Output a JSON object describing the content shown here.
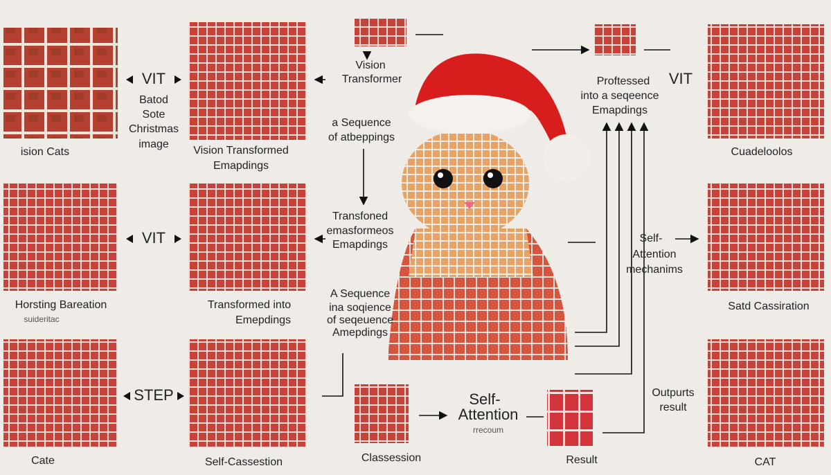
{
  "left": {
    "top_caption": "ision Cats",
    "side_note": [
      "Batod",
      "Sote",
      "Christmas",
      "image"
    ],
    "mid_caption": [
      "Horsting Bareation",
      "suideritac"
    ],
    "bottom_caption": "Cate"
  },
  "arrows_left": [
    "VIT",
    "VIT",
    "STEP"
  ],
  "middle": {
    "top_caption": [
      "Vision Transformed",
      "Emapdings"
    ],
    "mid_caption": [
      "Transformed into",
      "Emepdings"
    ],
    "bottom_caption": "Self-Cassestion"
  },
  "center": {
    "vision": [
      "Vision",
      "Transformer"
    ],
    "seq1": [
      "a Sequence",
      "of atbeppings"
    ],
    "trans": [
      "Transfoned",
      "emasformeos",
      "Emapdings"
    ],
    "seq2": [
      "A Sequence",
      "ina soqience",
      "of seqeuence",
      "Amepdings"
    ]
  },
  "right_center": {
    "processed": [
      "Proftessed",
      "into a seqeence",
      "Emapdings"
    ],
    "vit": "VIT",
    "attention": [
      "Self-",
      "Attention",
      "mechanims"
    ],
    "outputs": [
      "Outpurts",
      "result"
    ],
    "attention2": [
      "Self-",
      "Attention"
    ],
    "attention2_note": "rrecoum",
    "classession": "Classession",
    "result": "Result"
  },
  "right": {
    "top_caption": "Cuadeloolos",
    "mid_caption": "Satd Cassiration",
    "bottom_caption": "CAT"
  }
}
